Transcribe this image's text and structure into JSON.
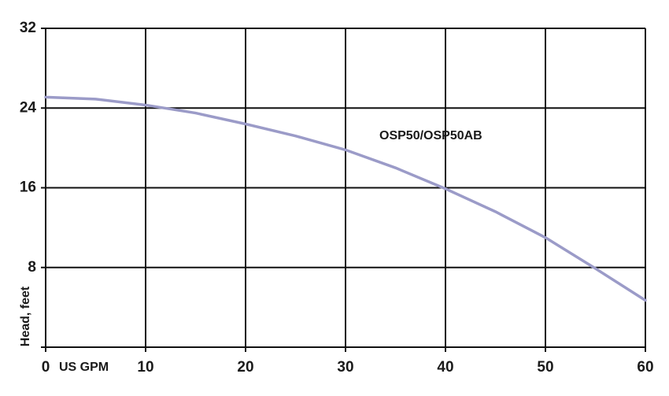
{
  "chart_data": {
    "type": "line",
    "x_label": "US GPM",
    "y_label": "Head, feet",
    "x": [
      0,
      5,
      10,
      15,
      20,
      25,
      30,
      35,
      40,
      45,
      50,
      55,
      60
    ],
    "series": [
      {
        "name": "OSP50/OSP50AB",
        "color": "#9b9bc8",
        "values": [
          25.1,
          24.9,
          24.3,
          23.5,
          22.4,
          21.2,
          19.8,
          18.0,
          15.9,
          13.6,
          11.0,
          7.9,
          4.7
        ]
      }
    ],
    "xlim": [
      0,
      60
    ],
    "xticks": [
      0,
      10,
      20,
      30,
      40,
      50,
      60
    ],
    "ylim": [
      0,
      32
    ],
    "yticks": [
      8,
      16,
      24,
      32
    ],
    "grid": true
  }
}
